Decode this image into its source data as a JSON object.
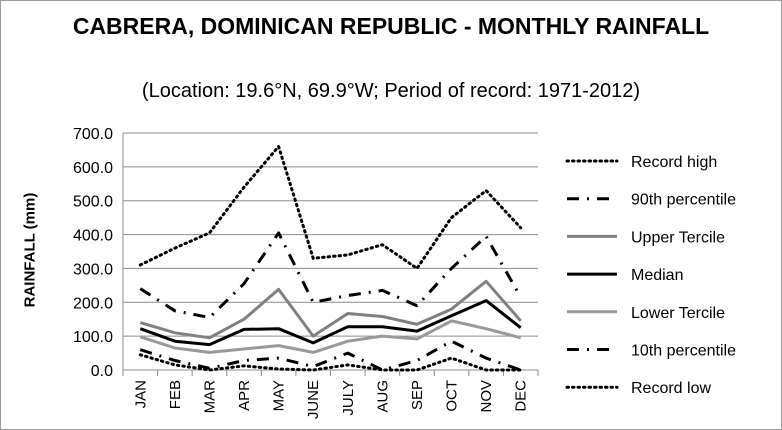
{
  "chart_data": {
    "type": "line",
    "title": "CABRERA, DOMINICAN REPUBLIC - MONTHLY RAINFALL",
    "subtitle": "(Location: 19.6°N, 69.9°W; Period of record: 1971-2012)",
    "ylabel": "RAINFALL (mm)",
    "xlabel": "",
    "ylim": [
      0,
      700
    ],
    "yticks": [
      "0.0",
      "100.0",
      "200.0",
      "300.0",
      "400.0",
      "500.0",
      "600.0",
      "700.0"
    ],
    "categories": [
      "JAN",
      "FEB",
      "MAR",
      "APR",
      "MAY",
      "JUNE",
      "JULY",
      "AUG",
      "SEP",
      "OCT",
      "NOV",
      "DEC"
    ],
    "grid": true,
    "legend_position": "right",
    "series": [
      {
        "name": "Record high",
        "style": "dotted",
        "color": "#000000",
        "values": [
          310,
          360,
          405,
          540,
          660,
          330,
          340,
          370,
          300,
          450,
          530,
          420
        ]
      },
      {
        "name": "90th percentile",
        "style": "dashdot",
        "color": "#000000",
        "values": [
          240,
          175,
          155,
          255,
          405,
          200,
          220,
          235,
          190,
          300,
          395,
          215
        ]
      },
      {
        "name": "Upper Tercile",
        "style": "solid",
        "color": "#808080",
        "values": [
          140,
          110,
          95,
          150,
          238,
          100,
          167,
          158,
          135,
          180,
          262,
          145
        ]
      },
      {
        "name": "Median",
        "style": "solid",
        "color": "#000000",
        "values": [
          122,
          85,
          75,
          120,
          122,
          80,
          128,
          128,
          115,
          160,
          205,
          125
        ]
      },
      {
        "name": "Lower Tercile",
        "style": "solid",
        "color": "#999999",
        "values": [
          98,
          65,
          52,
          62,
          72,
          52,
          85,
          100,
          92,
          145,
          122,
          95
        ]
      },
      {
        "name": "10th percentile",
        "style": "dashdot",
        "color": "#000000",
        "values": [
          60,
          28,
          5,
          28,
          35,
          10,
          50,
          0,
          28,
          85,
          35,
          0
        ]
      },
      {
        "name": "Record low",
        "style": "dotted",
        "color": "#000000",
        "values": [
          45,
          15,
          0,
          12,
          3,
          0,
          15,
          0,
          0,
          35,
          0,
          0
        ]
      }
    ]
  }
}
